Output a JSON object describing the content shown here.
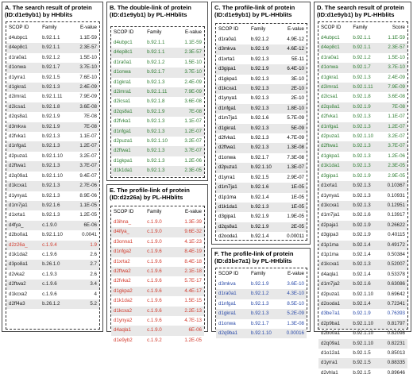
{
  "panels": {
    "A": {
      "title": "A. The search result of protein (ID:d1e9yb1) by HHblits",
      "headers": [
        "SCOP ID",
        "Family",
        "E-value"
      ],
      "rows": [
        [
          "d4ubpc1",
          "b.92.1.1",
          "1.1E-59"
        ],
        [
          "d4ep8c1",
          "b.92.1.1",
          "2.3E-57"
        ],
        [
          "d1ra0a1",
          "b.92.1.2",
          "1.5E-10"
        ],
        [
          "d1onwa",
          "b.92.1.7",
          "3.7E-10"
        ],
        [
          "d1yrrа1",
          "b.92.1.5",
          "7.6E-10"
        ],
        [
          "d1gkra1",
          "b.92.1.3",
          "2.4E-09"
        ],
        [
          "d2imra1",
          "b.92.1.11",
          "7.9E-09"
        ],
        [
          "d2icsa1",
          "b.92.1.8",
          "3.6E-08"
        ],
        [
          "d2qs8a1",
          "b.92.1.9",
          "7E-08"
        ],
        [
          "d3mkva",
          "b.92.1.9",
          "7E-08"
        ],
        [
          "d2fvka1",
          "b.92.1.3",
          "1.1E-07"
        ],
        [
          "d1nfga1",
          "b.92.1.3",
          "1.2E-07"
        ],
        [
          "d2puza1",
          "b.92.1.10",
          "3.2E-07"
        ],
        [
          "d2ftwa1",
          "b.92.1.3",
          "3.7E-07"
        ],
        [
          "d2q09a1",
          "b.92.1.10",
          "9.4E-07"
        ],
        [
          "d1kcxa1",
          "b.92.1.3",
          "2.7E-06"
        ],
        [
          "d1ynya1",
          "b.92.1.3",
          "8.9E-06"
        ],
        [
          "d1m7ja1",
          "b.92.1.6",
          "1.1E-05"
        ],
        [
          "d1xrta1",
          "b.92.1.3",
          "1.2E-05"
        ],
        [
          "d4fya_",
          "c.1.9.0",
          "6E-06"
        ],
        [
          "d2bo0a1",
          "b.92.1.10",
          "0.0041"
        ],
        [
          "d2z26a_",
          "c.1.9.4",
          "1.9"
        ],
        [
          "d1k1da2",
          "c.1.9.6",
          "2.6"
        ],
        [
          "d3po8a1",
          "b.26.1.0",
          "2.7"
        ],
        [
          "d2vka2",
          "c.1.9.3",
          "2.6"
        ],
        [
          "d2ftwa2",
          "c.1.9.6",
          "3.4"
        ],
        [
          "d1kcxa2",
          "c.1.9.6",
          "4"
        ],
        [
          "d2ff4a3",
          "b.26.1.2",
          "5.2"
        ]
      ],
      "highlight_row": 21
    },
    "B": {
      "title": "B. The double-link of protein (ID:d1e9yb1) by PL-HHblits",
      "headers": [
        "SCOP ID",
        "Family",
        "E-value"
      ],
      "rows": [
        [
          "d4ubpc1",
          "b.92.1.1",
          "1.1E-59"
        ],
        [
          "d4ep8c1",
          "b.92.1.1",
          "2.3E-57"
        ],
        [
          "d1ra0a1",
          "b.92.1.2",
          "1.5E-10"
        ],
        [
          "d1onwa",
          "b.92.1.7",
          "3.7E-10"
        ],
        [
          "d1gkra1",
          "b.92.1.3",
          "2.4E-09"
        ],
        [
          "d2imra1",
          "b.92.1.11",
          "7.9E-09"
        ],
        [
          "d2icsa1",
          "b.92.1.8",
          "3.6E-08"
        ],
        [
          "d2qs8a1",
          "b.92.1.9",
          "7E-08"
        ],
        [
          "d2fvka1",
          "b.92.1.3",
          "1.1E-07"
        ],
        [
          "d1nfga1",
          "b.92.1.3",
          "1.2E-07"
        ],
        [
          "d2puza1",
          "b.92.1.10",
          "3.2E-07"
        ],
        [
          "d2ftwa1",
          "b.92.1.3",
          "3.7E-07"
        ],
        [
          "d1gkpa1",
          "b.92.1.3",
          "1.2E-06"
        ],
        [
          "d1k1da1",
          "b.92.1.3",
          "2.3E-05"
        ]
      ]
    },
    "C": {
      "title": "C. The profile-link of protein (ID:d1e9yb1) by PL-HHblits",
      "headers": [
        "SCOP ID",
        "Family",
        "E-value"
      ],
      "rows": [
        [
          "d1ra0a1",
          "b.92.1.2",
          "4.9E-12"
        ],
        [
          "d3mkva",
          "b.92.1.9",
          "4.6E-12"
        ],
        [
          "d1xrta1",
          "b.92.1.3",
          "5E-11"
        ],
        [
          "d3gipa1",
          "b.92.1.9",
          "6.4E-10"
        ],
        [
          "d1gkpa1",
          "b.92.1.3",
          "3E-10"
        ],
        [
          "d1kcxa1",
          "b.92.1.3",
          "2E-10"
        ],
        [
          "d1ynya1",
          "b.92.1.3",
          "2E-10"
        ],
        [
          "d1nfga1",
          "b.92.1.3",
          "1.8E-10"
        ],
        [
          "d1m7ja1",
          "b.92.1.6",
          "5.7E-09"
        ],
        [
          "d1gkra1",
          "b.92.1.3",
          "5E-09"
        ],
        [
          "d2fvka1",
          "b.92.1.3",
          "4.7E-09"
        ],
        [
          "d2ftwa1",
          "b.92.1.3",
          "1.3E-08"
        ],
        [
          "d1onwa",
          "b.92.1.7",
          "7.3E-08"
        ],
        [
          "d2puza1",
          "b.92.1.10",
          "1.3E-07"
        ],
        [
          "d1yrra1",
          "b.92.1.5",
          "2.9E-07"
        ],
        [
          "d1m7ja1",
          "b.92.1.6",
          "1E-05"
        ],
        [
          "d1p1ma",
          "b.92.1.4",
          "1E-05"
        ],
        [
          "d1k1da1",
          "b.92.1.3",
          "1E-05"
        ],
        [
          "d3gipa1",
          "b.92.1.9",
          "1.9E-05"
        ],
        [
          "d2qs8a1",
          "b.92.1.9",
          "2E-05"
        ],
        [
          "d2ooda1",
          "b.92.1.4",
          "0.00011"
        ]
      ]
    },
    "D": {
      "title": "D. The search result of protein (ID:d1e9yb1) by PL-HHblits",
      "headers": [
        "SCOP ID",
        "Family",
        "Score"
      ],
      "rows": [
        [
          "d4ubpc1",
          "b.92.1.1",
          "1.1E-59"
        ],
        [
          "d4ep8c1",
          "b.92.1.1",
          "2.3E-57"
        ],
        [
          "d1ra0a1",
          "b.92.1.2",
          "1.5E-10"
        ],
        [
          "d1onwa",
          "b.92.1.7",
          "3.7E-10"
        ],
        [
          "d1gkra1",
          "b.92.1.3",
          "2.4E-09"
        ],
        [
          "d2imra1",
          "b.92.1.11",
          "7.9E-09"
        ],
        [
          "d2icsa1",
          "b.92.1.8",
          "3.6E-08"
        ],
        [
          "d2qs8a1",
          "b.92.1.9",
          "7E-08"
        ],
        [
          "d2fvka1",
          "b.92.1.3",
          "1.1E-07"
        ],
        [
          "d1nfga1",
          "b.92.1.3",
          "1.2E-07"
        ],
        [
          "d2puza1",
          "b.92.1.10",
          "3.2E-07"
        ],
        [
          "d2ftwa1",
          "b.92.1.3",
          "3.7E-07"
        ],
        [
          "d1gkpa1",
          "b.92.1.3",
          "1.2E-06"
        ],
        [
          "d1k1da1",
          "b.92.1.3",
          "2.3E-05"
        ],
        [
          "d3gipa1",
          "b.92.1.9",
          "2.9E-05"
        ],
        [
          "d1xrta1",
          "b.92.1.3",
          "0.10367"
        ],
        [
          "d1ynya1",
          "b.92.1.3",
          "0.10931"
        ],
        [
          "d1kcxa1",
          "b.92.1.3",
          "0.12951"
        ],
        [
          "d1m7ja1",
          "b.92.1.6",
          "0.13917"
        ],
        [
          "d2paja1",
          "b.92.1.9",
          "0.26622"
        ],
        [
          "d3gipa3",
          "b.92.1.9",
          "0.40115"
        ],
        [
          "d1p1ma",
          "b.92.1.4",
          "0.49172"
        ],
        [
          "d1p1ma",
          "b.92.1.4",
          "0.50384"
        ],
        [
          "d1kcxa1",
          "b.92.1.3",
          "0.52007"
        ],
        [
          "d4aqla1",
          "b.92.1.4",
          "0.53378"
        ],
        [
          "d1m7ja2",
          "b.92.1.6",
          "0.63086"
        ],
        [
          "d2puza1",
          "b.92.1.10",
          "0.69642"
        ],
        [
          "d2ooda1",
          "b.92.1.4",
          "0.72341"
        ],
        [
          "d3be7a1",
          "b.92.1.9",
          "0.76393"
        ],
        [
          "d2p9ba1",
          "b.92.1.10",
          "0.81797"
        ],
        [
          "d2bo0a1",
          "b.92.1.10",
          "0.82098"
        ],
        [
          "d2q09a1",
          "b.92.1.10",
          "0.82231"
        ],
        [
          "d1o12a1",
          "b.92.1.5",
          "0.85013"
        ],
        [
          "d1yrra1",
          "b.92.1.5",
          "0.88335"
        ],
        [
          "d2vhla1",
          "b.92.1.5",
          "0.89646"
        ]
      ],
      "green_count": 15,
      "blue_row": 28
    },
    "E": {
      "title": "E. The profile-link of protein (ID:d2z26a) by PL-HHblits",
      "headers": [
        "SCOP ID",
        "Family",
        "E-value"
      ],
      "rows": [
        [
          "d3ihna_",
          "c.1.9.0",
          "1.3E-39"
        ],
        [
          "d4ifya_",
          "c.1.9.0",
          "9.6E-32"
        ],
        [
          "d3onna1",
          "c.1.9.0",
          "4.1E-23"
        ],
        [
          "d1nfga2",
          "c.1.9.6",
          "8.4E-19"
        ],
        [
          "d1xrta2",
          "c.1.9.6",
          "8.4E-18"
        ],
        [
          "d2ftwa2",
          "c.1.9.6",
          "2.1E-18"
        ],
        [
          "d2fvka2",
          "c.1.9.6",
          "5.7E-17"
        ],
        [
          "d1gkpa2",
          "c.1.9.6",
          "4.4E-17"
        ],
        [
          "d1k1da2",
          "c.1.9.6",
          "1.5E-15"
        ],
        [
          "d1kcxa2",
          "c.1.9.6",
          "2.2E-13"
        ],
        [
          "d1ynya2",
          "c.1.9.6",
          "4.7E-13"
        ],
        [
          "d4aqla1",
          "c.1.9.0",
          "6E-06"
        ],
        [
          "d1e9yb2",
          "c.1.9.2",
          "1.2E-05"
        ]
      ]
    },
    "F": {
      "title": "F. The profile-link of protein (ID:d3be7a1) by PL-HHblits",
      "headers": [
        "SCOP ID",
        "Family",
        "E-value"
      ],
      "rows": [
        [
          "d3mkva",
          "b.92.1.9",
          "3.6E-10"
        ],
        [
          "d1ra0a1",
          "b.92.1.2",
          "4.3E-10"
        ],
        [
          "d1nfga1",
          "b.92.1.3",
          "8.5E-10"
        ],
        [
          "d1gkra1",
          "b.92.1.3",
          "5.2E-09"
        ],
        [
          "d1onwa",
          "b.92.1.7",
          "1.3E-08"
        ],
        [
          "d2q9ba1",
          "b.92.1.10",
          "0.00016"
        ]
      ]
    }
  },
  "colors": {
    "green": "#2e7d32",
    "red": "#d23a2c",
    "blue": "#2849a8",
    "highlight": "#e8e8e8"
  }
}
